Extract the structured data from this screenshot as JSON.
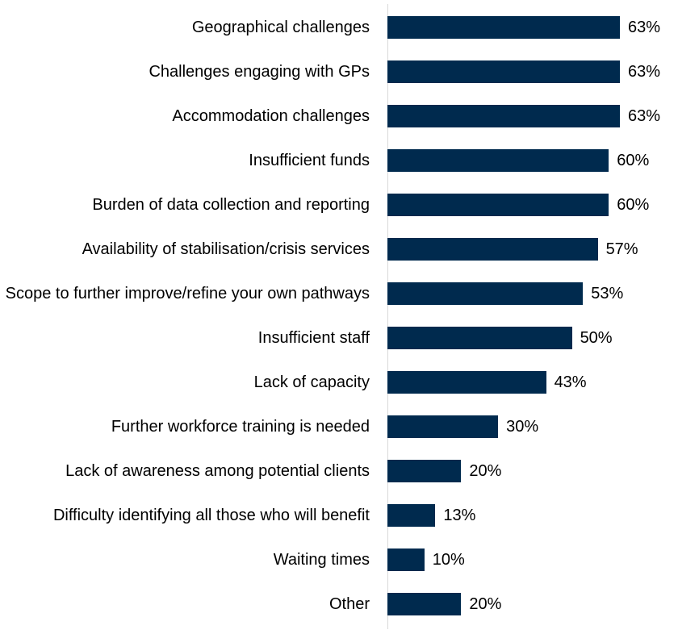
{
  "chart_data": {
    "type": "bar",
    "orientation": "horizontal",
    "color": "#002a4e",
    "categories": [
      "Geographical challenges",
      "Challenges engaging with GPs",
      "Accommodation challenges",
      "Insufficient funds",
      "Burden of data collection and reporting",
      "Availability of stabilisation/crisis services",
      "Scope to further improve/refine your own pathways",
      "Insufficient staff",
      "Lack of capacity",
      "Further workforce training is needed",
      "Lack of awareness among potential clients",
      "Difficulty identifying all those who will benefit",
      "Waiting times",
      "Other"
    ],
    "values": [
      63,
      63,
      63,
      60,
      60,
      57,
      53,
      50,
      43,
      30,
      20,
      13,
      10,
      20
    ],
    "value_labels": [
      "63%",
      "63%",
      "63%",
      "60%",
      "60%",
      "57%",
      "53%",
      "50%",
      "43%",
      "30%",
      "20%",
      "13%",
      "10%",
      "20%"
    ]
  }
}
